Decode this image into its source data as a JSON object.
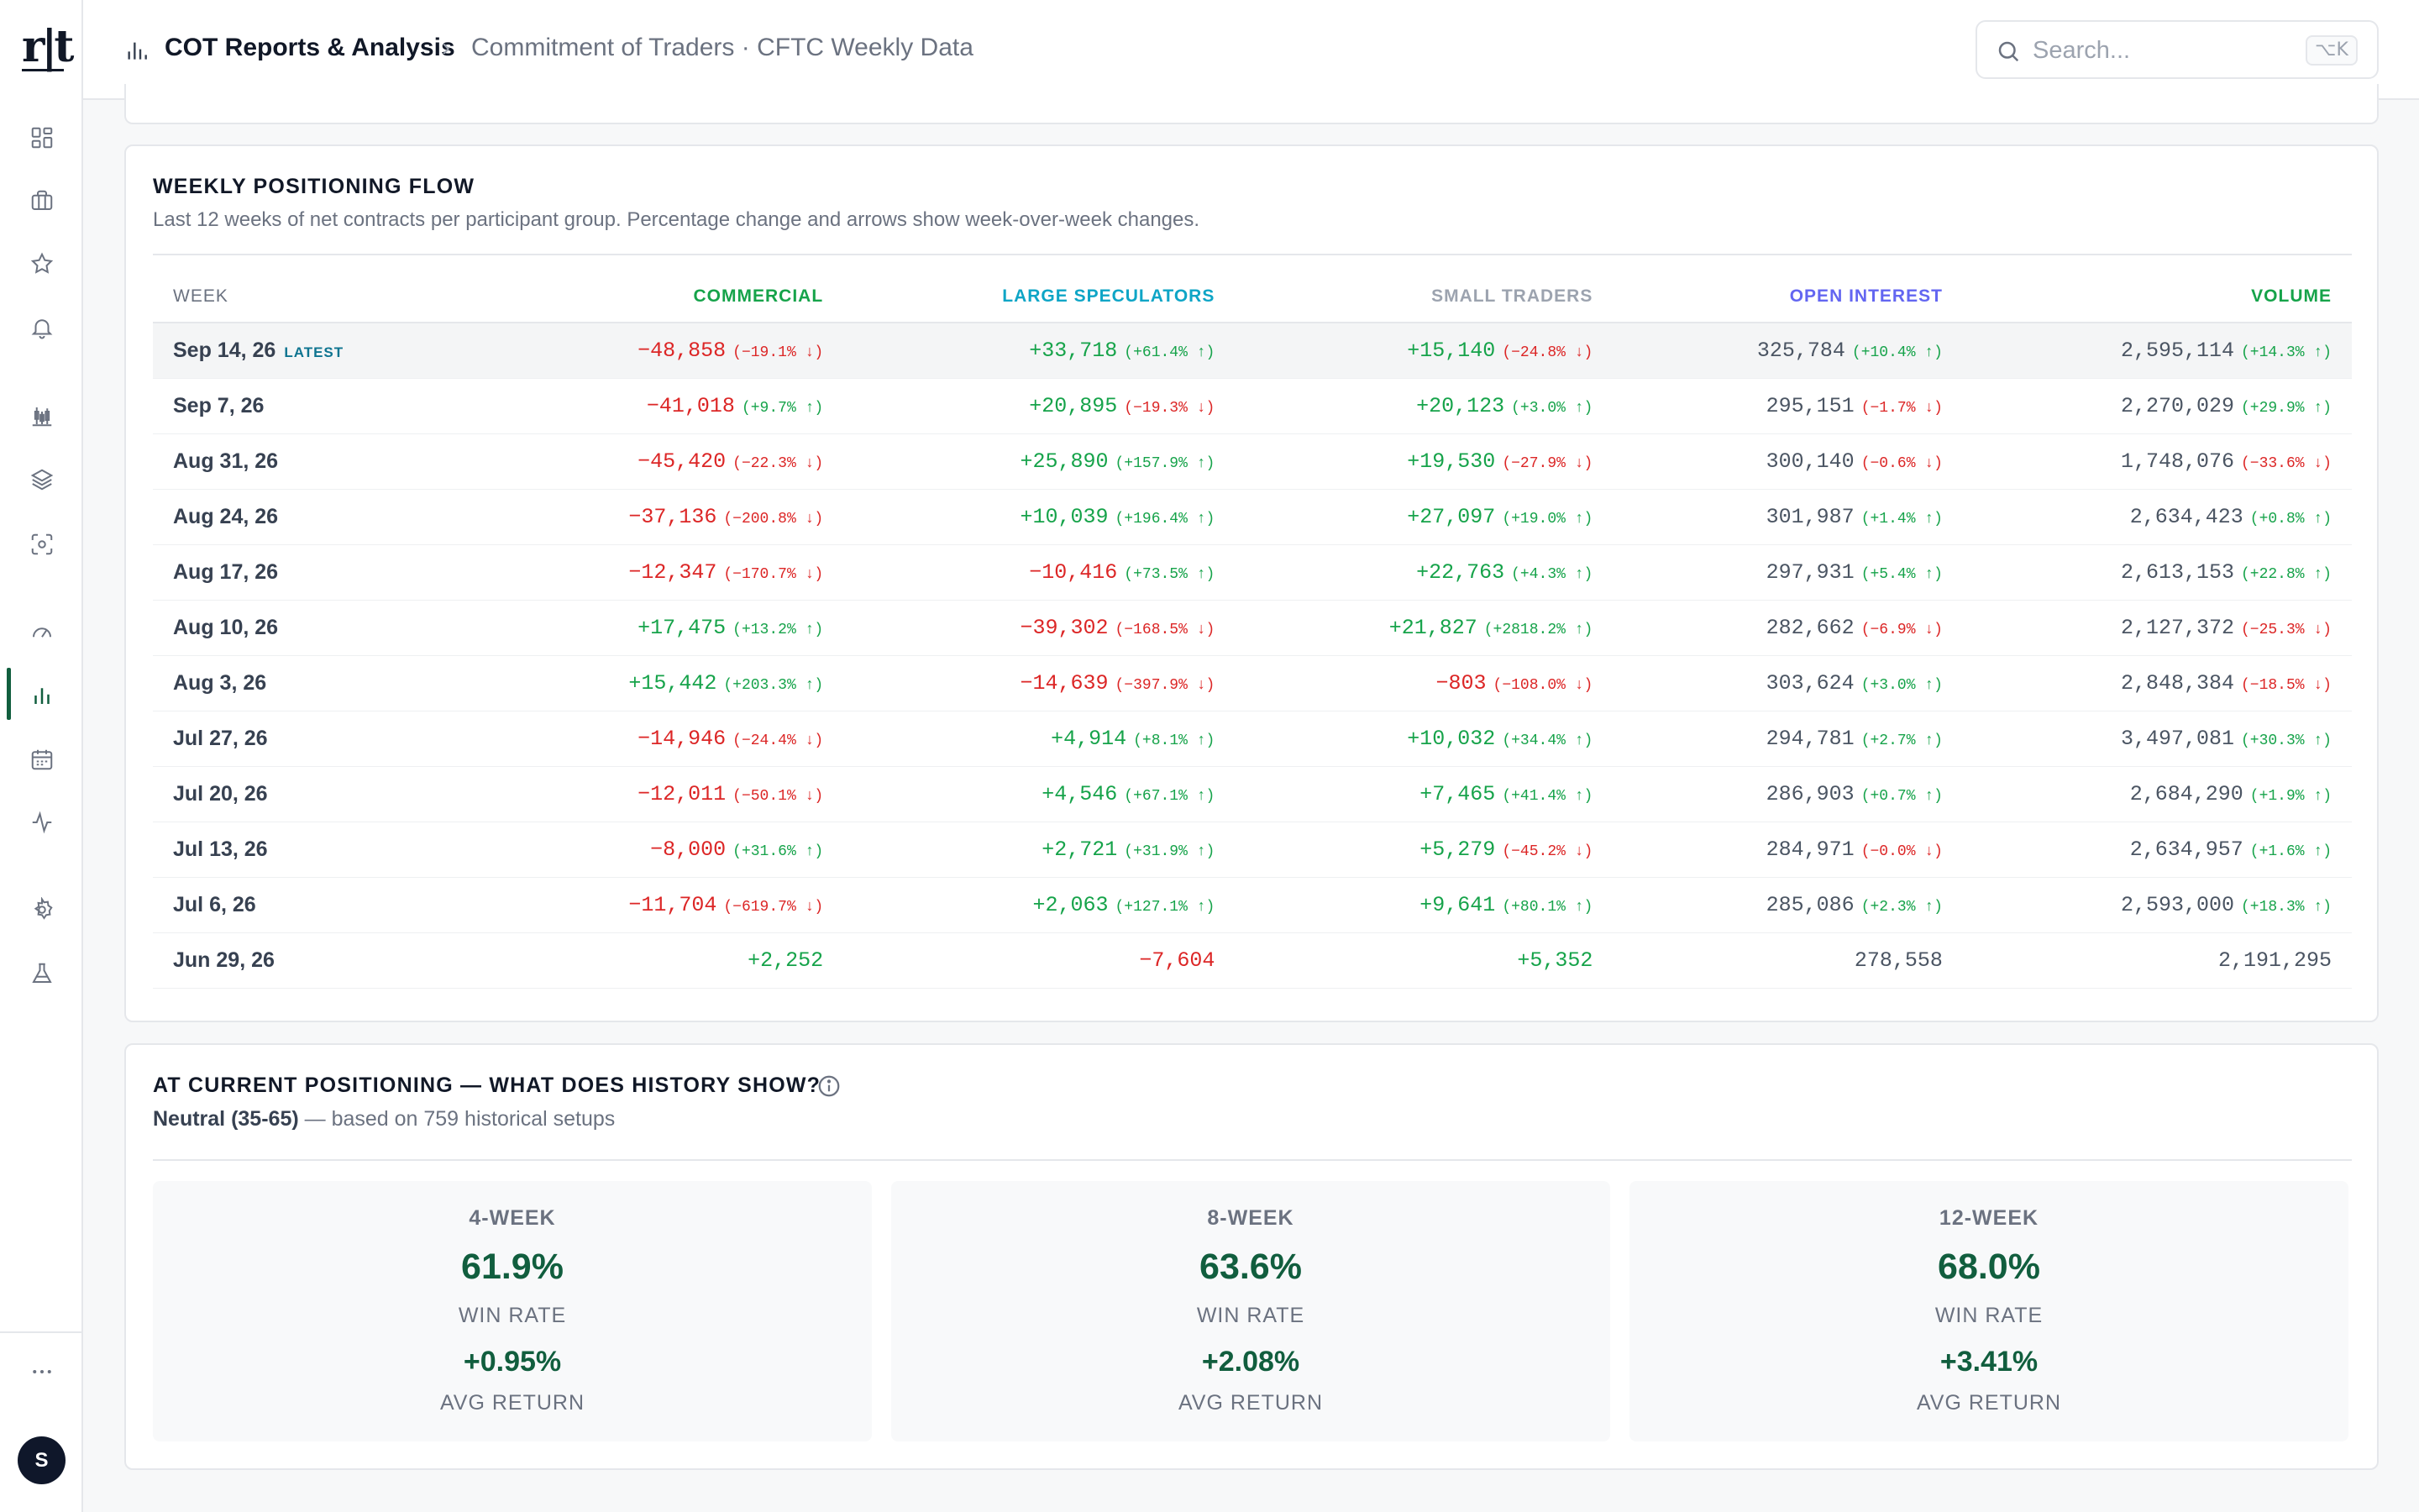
{
  "header": {
    "title": "COT Reports & Analysis",
    "separator": "›",
    "subtitle": "Commitment of Traders · CFTC Weekly Data",
    "search_placeholder": "Search...",
    "search_shortcut": "⌥K"
  },
  "sidebar": {
    "logo": "r|t",
    "avatar_initial": "S",
    "icons": [
      "dashboard-icon",
      "briefcase-icon",
      "star-icon",
      "bell-icon",
      "candles-icon",
      "layers-icon",
      "scan-icon",
      "gauge-icon",
      "bar-chart-icon",
      "calendar-icon",
      "pulse-icon",
      "settings-icon",
      "flask-icon",
      "more-icon"
    ],
    "active": "bar-chart-icon"
  },
  "flow": {
    "title": "WEEKLY POSITIONING FLOW",
    "description": "Last 12 weeks of net contracts per participant group. Percentage change and arrows show week-over-week changes.",
    "columns": [
      {
        "label": "WEEK",
        "color": "#6b7280"
      },
      {
        "label": "COMMERCIAL",
        "color": "#16a34a"
      },
      {
        "label": "LARGE SPECULATORS",
        "color": "#0ea5c6"
      },
      {
        "label": "SMALL TRADERS",
        "color": "#9ca3af"
      },
      {
        "label": "OPEN INTEREST",
        "color": "#6366f1"
      },
      {
        "label": "VOLUME",
        "color": "#16a34a"
      }
    ],
    "latest_badge": "LATEST",
    "rows": [
      {
        "week": "Sep 14, 26",
        "latest": true,
        "commercial": [
          "−48,858",
          "(−19.1% ↓)"
        ],
        "large": [
          "+33,718",
          "(+61.4% ↑)"
        ],
        "small": [
          "+15,140",
          "(−24.8% ↓)"
        ],
        "oi": [
          "325,784",
          "(+10.4% ↑)"
        ],
        "volume": [
          "2,595,114",
          "(+14.3% ↑)"
        ]
      },
      {
        "week": "Sep 7, 26",
        "commercial": [
          "−41,018",
          "(+9.7% ↑)"
        ],
        "large": [
          "+20,895",
          "(−19.3% ↓)"
        ],
        "small": [
          "+20,123",
          "(+3.0% ↑)"
        ],
        "oi": [
          "295,151",
          "(−1.7% ↓)"
        ],
        "volume": [
          "2,270,029",
          "(+29.9% ↑)"
        ]
      },
      {
        "week": "Aug 31, 26",
        "commercial": [
          "−45,420",
          "(−22.3% ↓)"
        ],
        "large": [
          "+25,890",
          "(+157.9% ↑)"
        ],
        "small": [
          "+19,530",
          "(−27.9% ↓)"
        ],
        "oi": [
          "300,140",
          "(−0.6% ↓)"
        ],
        "volume": [
          "1,748,076",
          "(−33.6% ↓)"
        ]
      },
      {
        "week": "Aug 24, 26",
        "commercial": [
          "−37,136",
          "(−200.8% ↓)"
        ],
        "large": [
          "+10,039",
          "(+196.4% ↑)"
        ],
        "small": [
          "+27,097",
          "(+19.0% ↑)"
        ],
        "oi": [
          "301,987",
          "(+1.4% ↑)"
        ],
        "volume": [
          "2,634,423",
          "(+0.8% ↑)"
        ]
      },
      {
        "week": "Aug 17, 26",
        "commercial": [
          "−12,347",
          "(−170.7% ↓)"
        ],
        "large": [
          "−10,416",
          "(+73.5% ↑)"
        ],
        "small": [
          "+22,763",
          "(+4.3% ↑)"
        ],
        "oi": [
          "297,931",
          "(+5.4% ↑)"
        ],
        "volume": [
          "2,613,153",
          "(+22.8% ↑)"
        ]
      },
      {
        "week": "Aug 10, 26",
        "commercial": [
          "+17,475",
          "(+13.2% ↑)"
        ],
        "large": [
          "−39,302",
          "(−168.5% ↓)"
        ],
        "small": [
          "+21,827",
          "(+2818.2% ↑)"
        ],
        "oi": [
          "282,662",
          "(−6.9% ↓)"
        ],
        "volume": [
          "2,127,372",
          "(−25.3% ↓)"
        ]
      },
      {
        "week": "Aug 3, 26",
        "commercial": [
          "+15,442",
          "(+203.3% ↑)"
        ],
        "large": [
          "−14,639",
          "(−397.9% ↓)"
        ],
        "small": [
          "−803",
          "(−108.0% ↓)"
        ],
        "oi": [
          "303,624",
          "(+3.0% ↑)"
        ],
        "volume": [
          "2,848,384",
          "(−18.5% ↓)"
        ]
      },
      {
        "week": "Jul 27, 26",
        "commercial": [
          "−14,946",
          "(−24.4% ↓)"
        ],
        "large": [
          "+4,914",
          "(+8.1% ↑)"
        ],
        "small": [
          "+10,032",
          "(+34.4% ↑)"
        ],
        "oi": [
          "294,781",
          "(+2.7% ↑)"
        ],
        "volume": [
          "3,497,081",
          "(+30.3% ↑)"
        ]
      },
      {
        "week": "Jul 20, 26",
        "commercial": [
          "−12,011",
          "(−50.1% ↓)"
        ],
        "large": [
          "+4,546",
          "(+67.1% ↑)"
        ],
        "small": [
          "+7,465",
          "(+41.4% ↑)"
        ],
        "oi": [
          "286,903",
          "(+0.7% ↑)"
        ],
        "volume": [
          "2,684,290",
          "(+1.9% ↑)"
        ]
      },
      {
        "week": "Jul 13, 26",
        "commercial": [
          "−8,000",
          "(+31.6% ↑)"
        ],
        "large": [
          "+2,721",
          "(+31.9% ↑)"
        ],
        "small": [
          "+5,279",
          "(−45.2% ↓)"
        ],
        "oi": [
          "284,971",
          "(−0.0% ↓)"
        ],
        "volume": [
          "2,634,957",
          "(+1.6% ↑)"
        ]
      },
      {
        "week": "Jul 6, 26",
        "commercial": [
          "−11,704",
          "(−619.7% ↓)"
        ],
        "large": [
          "+2,063",
          "(+127.1% ↑)"
        ],
        "small": [
          "+9,641",
          "(+80.1% ↑)"
        ],
        "oi": [
          "285,086",
          "(+2.3% ↑)"
        ],
        "volume": [
          "2,593,000",
          "(+18.3% ↑)"
        ]
      },
      {
        "week": "Jun 29, 26",
        "commercial": [
          "+2,252",
          ""
        ],
        "large": [
          "−7,604",
          ""
        ],
        "small": [
          "+5,352",
          ""
        ],
        "oi": [
          "278,558",
          ""
        ],
        "volume": [
          "2,191,295",
          ""
        ]
      }
    ]
  },
  "history": {
    "title": "AT CURRENT POSITIONING — WHAT DOES HISTORY SHOW?",
    "regime": "Neutral (35-65)",
    "regime_suffix": " — based on 759 historical setups",
    "stats": [
      {
        "period": "4-WEEK",
        "win_rate": "61.9%",
        "win_label": "WIN RATE",
        "avg_return": "+0.95%",
        "return_label": "AVG RETURN"
      },
      {
        "period": "8-WEEK",
        "win_rate": "63.6%",
        "win_label": "WIN RATE",
        "avg_return": "+2.08%",
        "return_label": "AVG RETURN"
      },
      {
        "period": "12-WEEK",
        "win_rate": "68.0%",
        "win_label": "WIN RATE",
        "avg_return": "+3.41%",
        "return_label": "AVG RETURN"
      }
    ]
  }
}
